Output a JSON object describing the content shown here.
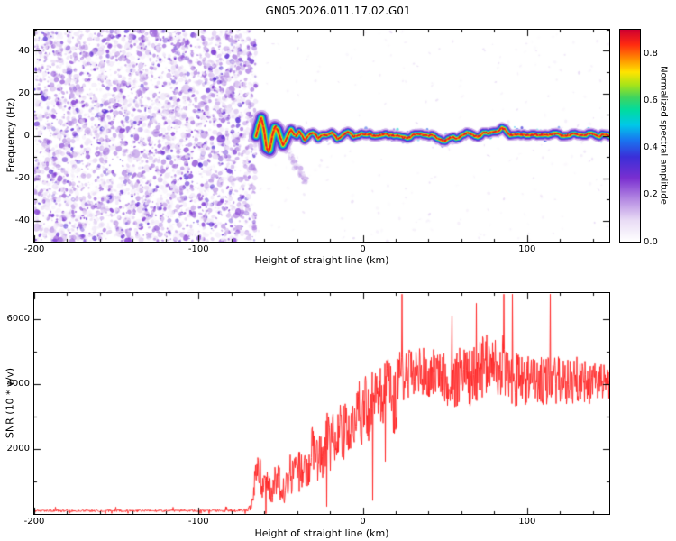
{
  "page": {
    "title": "GN05.2026.011.17.02.G01",
    "background": "#ffffff"
  },
  "chart_data": [
    {
      "type": "heatmap",
      "panel": "spectrogram",
      "title": "GN05.2026.011.17.02.G01",
      "xlabel": "Height of straight line (km)",
      "ylabel": "Frequency (Hz)",
      "xlim": [
        -200,
        150
      ],
      "ylim": [
        -50,
        50
      ],
      "xticks": [
        -200,
        -100,
        0,
        100
      ],
      "yticks": [
        -40,
        -20,
        0,
        20,
        40
      ],
      "colorbar": {
        "label": "Normalized spectral amplitude",
        "ticks": [
          "0.0",
          "0.2",
          "0.4",
          "0.6",
          "0.8"
        ],
        "tick_values": [
          0,
          0.2,
          0.4,
          0.6,
          0.8
        ],
        "vmin": 0,
        "vmax": 0.9,
        "colormap": [
          [
            0,
            "#ffffff"
          ],
          [
            0.1,
            "#e9dcf5"
          ],
          [
            0.2,
            "#b489e2"
          ],
          [
            0.3,
            "#7a2fd0"
          ],
          [
            0.4,
            "#3a2fd8"
          ],
          [
            0.48,
            "#1877f0"
          ],
          [
            0.55,
            "#00c8e8"
          ],
          [
            0.62,
            "#00dca0"
          ],
          [
            0.68,
            "#3fd45f"
          ],
          [
            0.74,
            "#a8e418"
          ],
          [
            0.8,
            "#ffe400"
          ],
          [
            0.86,
            "#ff9000"
          ],
          [
            0.93,
            "#ff2a10"
          ],
          [
            1,
            "#cf0030"
          ]
        ]
      },
      "noise_region": {
        "x_start": -200,
        "x_end": -65
      },
      "signal_track": [
        [
          -65,
          0
        ],
        [
          -63.5,
          4
        ],
        [
          -62,
          8
        ],
        [
          -60.5,
          4
        ],
        [
          -59,
          -4
        ],
        [
          -57.5,
          -8
        ],
        [
          -56,
          -4
        ],
        [
          -54.5,
          3
        ],
        [
          -53,
          5
        ],
        [
          -51.5,
          2
        ],
        [
          -50,
          -2
        ],
        [
          -48.5,
          -4
        ],
        [
          -47,
          -2
        ],
        [
          -45.5,
          1
        ],
        [
          -44,
          3
        ],
        [
          -42.5,
          1
        ],
        [
          -41,
          -1
        ],
        [
          -39,
          2
        ],
        [
          -37,
          0
        ],
        [
          -35,
          -2
        ],
        [
          -33,
          0
        ],
        [
          -30,
          1
        ],
        [
          -27,
          -1
        ],
        [
          -24,
          1
        ],
        [
          -21,
          0
        ],
        [
          -18,
          1
        ],
        [
          -15,
          -1
        ],
        [
          -12,
          0
        ],
        [
          -9,
          1
        ],
        [
          -6,
          0
        ],
        [
          -3,
          1
        ],
        [
          0,
          0
        ],
        [
          5,
          1
        ],
        [
          10,
          0
        ],
        [
          15,
          1
        ],
        [
          20,
          0
        ],
        [
          25,
          -1
        ],
        [
          30,
          0
        ],
        [
          35,
          1
        ],
        [
          40,
          0
        ],
        [
          45,
          -1
        ],
        [
          50,
          -2
        ],
        [
          55,
          -1
        ],
        [
          60,
          0
        ],
        [
          65,
          1
        ],
        [
          70,
          0
        ],
        [
          75,
          1
        ],
        [
          80,
          2
        ],
        [
          85,
          3
        ],
        [
          90,
          1
        ],
        [
          95,
          0
        ],
        [
          100,
          1
        ],
        [
          105,
          0
        ],
        [
          110,
          1
        ],
        [
          115,
          0
        ],
        [
          120,
          1
        ],
        [
          125,
          0
        ],
        [
          130,
          1
        ],
        [
          135,
          0
        ],
        [
          140,
          1
        ],
        [
          145,
          0
        ],
        [
          150,
          0
        ]
      ],
      "faint_streak": [
        [
          -46,
          -6
        ],
        [
          -42,
          -12
        ],
        [
          -38,
          -18
        ],
        [
          -34,
          -22
        ]
      ]
    },
    {
      "type": "line",
      "panel": "snr",
      "xlabel": "Height of straight line (km)",
      "ylabel": "SNR (10 * v/v)",
      "xlim": [
        -200,
        150
      ],
      "ylim": [
        0,
        6800
      ],
      "xticks": [
        -200,
        -100,
        0,
        100
      ],
      "yticks": [
        2000,
        4000,
        6000
      ],
      "line_color": "#ff2222",
      "snr_envelope": [
        [
          -200,
          100,
          35
        ],
        [
          -150,
          100,
          35
        ],
        [
          -100,
          100,
          35
        ],
        [
          -80,
          105,
          40
        ],
        [
          -70,
          115,
          45
        ],
        [
          -68,
          250,
          150
        ],
        [
          -66,
          1000,
          500
        ],
        [
          -64,
          1600,
          420
        ],
        [
          -62,
          1100,
          500
        ],
        [
          -60,
          800,
          460
        ],
        [
          -58,
          1000,
          500
        ],
        [
          -56,
          700,
          420
        ],
        [
          -54,
          950,
          500
        ],
        [
          -52,
          1200,
          520
        ],
        [
          -50,
          900,
          500
        ],
        [
          -48,
          750,
          430
        ],
        [
          -46,
          1000,
          520
        ],
        [
          -44,
          1300,
          600
        ],
        [
          -42,
          1050,
          600
        ],
        [
          -40,
          1500,
          700
        ],
        [
          -38,
          1200,
          620
        ],
        [
          -36,
          1600,
          700
        ],
        [
          -34,
          1350,
          650
        ],
        [
          -32,
          1750,
          760
        ],
        [
          -30,
          2000,
          800
        ],
        [
          -28,
          1650,
          760
        ],
        [
          -26,
          2100,
          820
        ],
        [
          -24,
          1850,
          800
        ],
        [
          -22,
          2300,
          860
        ],
        [
          -20,
          2050,
          820
        ],
        [
          -18,
          2500,
          900
        ],
        [
          -16,
          2250,
          860
        ],
        [
          -14,
          2700,
          920
        ],
        [
          -12,
          2450,
          900
        ],
        [
          -10,
          2900,
          950
        ],
        [
          -8,
          2650,
          920
        ],
        [
          -6,
          3100,
          960
        ],
        [
          -4,
          2850,
          950
        ],
        [
          -2,
          3300,
          1000
        ],
        [
          0,
          3050,
          1000
        ],
        [
          2,
          3400,
          1000
        ],
        [
          4,
          3150,
          1000
        ],
        [
          6,
          3600,
          1000
        ],
        [
          8,
          3350,
          1000
        ],
        [
          10,
          3800,
          950
        ],
        [
          12,
          3550,
          960
        ],
        [
          14,
          4000,
          920
        ],
        [
          16,
          3750,
          950
        ],
        [
          18,
          4100,
          900
        ],
        [
          20,
          2700,
          1900
        ],
        [
          22,
          4300,
          820
        ],
        [
          24,
          4100,
          860
        ],
        [
          26,
          4400,
          800
        ],
        [
          30,
          4250,
          800
        ],
        [
          35,
          4400,
          800
        ],
        [
          40,
          4300,
          760
        ],
        [
          45,
          4450,
          800
        ],
        [
          50,
          4250,
          850
        ],
        [
          55,
          4050,
          900
        ],
        [
          60,
          4300,
          920
        ],
        [
          65,
          4150,
          950
        ],
        [
          70,
          4400,
          960
        ],
        [
          75,
          4600,
          1000
        ],
        [
          80,
          4450,
          1000
        ],
        [
          85,
          4600,
          960
        ],
        [
          90,
          4300,
          900
        ],
        [
          95,
          4100,
          860
        ],
        [
          100,
          4050,
          800
        ],
        [
          105,
          4200,
          760
        ],
        [
          110,
          4100,
          760
        ],
        [
          115,
          4000,
          800
        ],
        [
          120,
          4200,
          760
        ],
        [
          125,
          4050,
          750
        ],
        [
          130,
          4150,
          700
        ],
        [
          135,
          4050,
          660
        ],
        [
          140,
          4000,
          620
        ],
        [
          145,
          4100,
          560
        ],
        [
          150,
          4050,
          520
        ]
      ]
    }
  ]
}
